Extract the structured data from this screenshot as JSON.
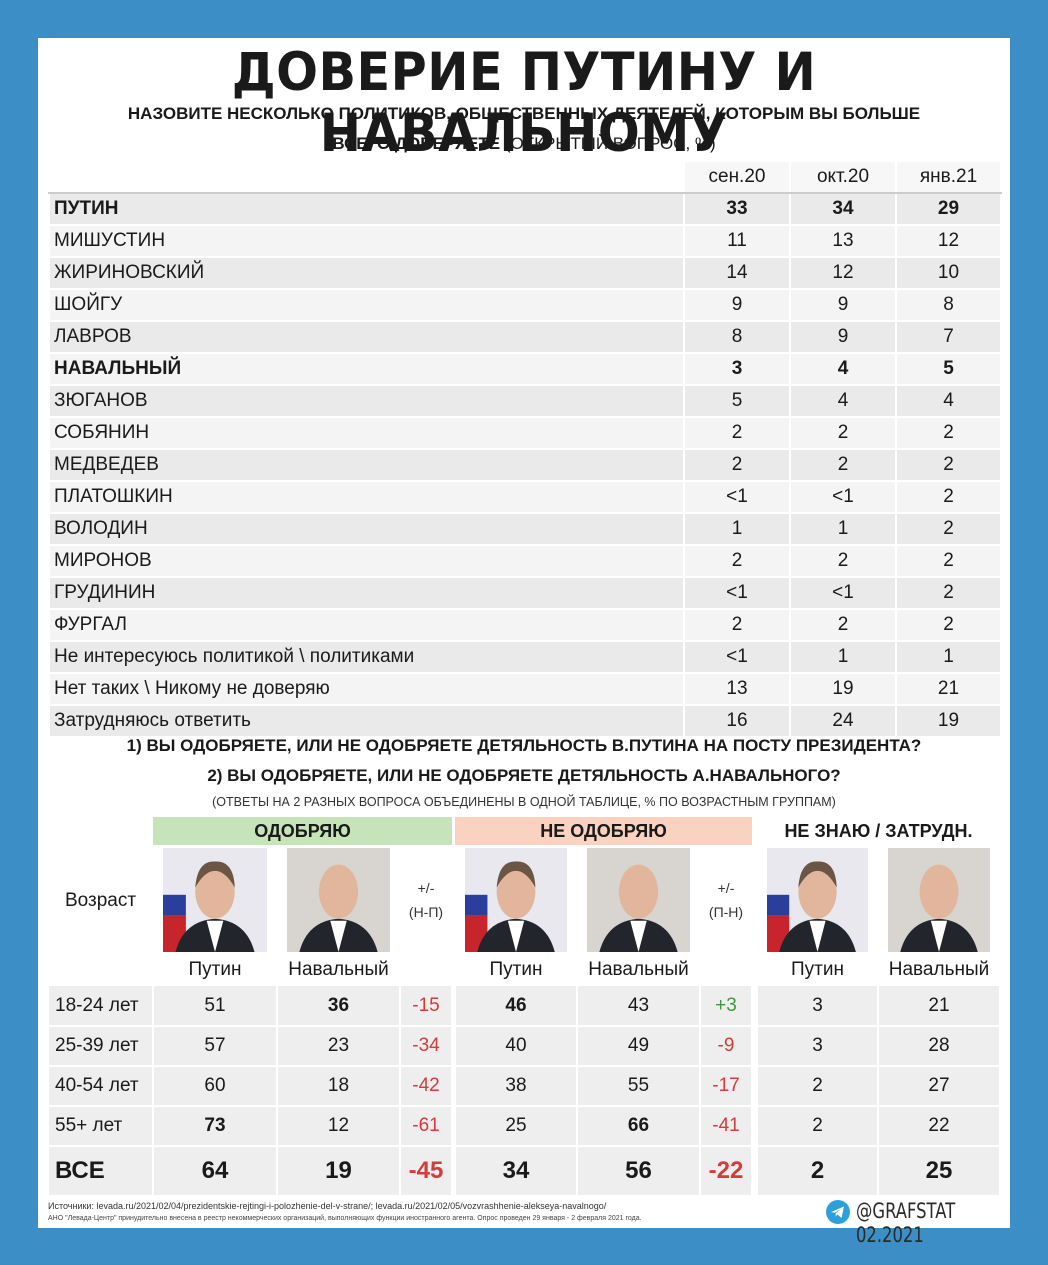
{
  "header": {
    "title": "ДОВЕРИЕ ПУТИНУ И НАВАЛЬНОМУ",
    "question_bold_1": "НАЗОВИТЕ НЕСКОЛЬКО ПОЛИТИКОВ, ОБЩЕСТВЕННЫХ ДЕЯТЕЛЕЙ, КОТОРЫМ ВЫ БОЛЬШЕ",
    "question_bold_2": "ВСЕГО ДОВЕРЯЕТЕ",
    "question_note": "(ОТКРЫТЫЙ ВОПРОС, %)"
  },
  "trust_table": {
    "columns": [
      "сен.20",
      "окт.20",
      "янв.21"
    ],
    "rows": [
      [
        "ПУТИН",
        "33",
        "34",
        "29"
      ],
      [
        "МИШУСТИН",
        "11",
        "13",
        "12"
      ],
      [
        "ЖИРИНОВСКИЙ",
        "14",
        "12",
        "10"
      ],
      [
        "ШОЙГУ",
        "9",
        "9",
        "8"
      ],
      [
        "ЛАВРОВ",
        "8",
        "9",
        "7"
      ],
      [
        "НАВАЛЬНЫЙ",
        "3",
        "4",
        "5"
      ],
      [
        "ЗЮГАНОВ",
        "5",
        "4",
        "4"
      ],
      [
        "СОБЯНИН",
        "2",
        "2",
        "2"
      ],
      [
        "МЕДВЕДЕВ",
        "2",
        "2",
        "2"
      ],
      [
        "ПЛАТОШКИН",
        "<1",
        "<1",
        "2"
      ],
      [
        "ВОЛОДИН",
        "1",
        "1",
        "2"
      ],
      [
        "МИРОНОВ",
        "2",
        "2",
        "2"
      ],
      [
        "ГРУДИНИН",
        "<1",
        "<1",
        "2"
      ],
      [
        "ФУРГАЛ",
        "2",
        "2",
        "2"
      ],
      [
        "Не интересуюсь политикой \\ политиками",
        "<1",
        "1",
        "1"
      ],
      [
        "Нет таких \\ Никому не доверяю",
        "13",
        "19",
        "21"
      ],
      [
        "Затрудняюсь ответить",
        "16",
        "24",
        "19"
      ]
    ]
  },
  "approval": {
    "question_1": "1) ВЫ ОДОБРЯЕТЕ, ИЛИ НЕ ОДОБРЯЕТЕ ДЕТЯЛЬНОСТЬ В.ПУТИНА НА ПОСТУ ПРЕЗИДЕНТА?",
    "question_2": "2) ВЫ ОДОБРЯЕТЕ, ИЛИ НЕ ОДОБРЯЕТЕ ДЕТЯЛЬНОСТЬ А.НАВАЛЬНОГО?",
    "note": "(ОТВЕТЫ НА 2 РАЗНЫХ ВОПРОСА ОБЪЕДИНЕНЫ В ОДНОЙ ТАБЛИЦЕ, % ПО ВОЗРАСТНЫМ ГРУППАМ)",
    "age_header": "Возраст",
    "groups": [
      {
        "title": "ОДОБРЯЮ",
        "columns": [
          "Путин",
          "Навальный"
        ],
        "diff": [
          "+/-",
          "(Н-П)"
        ]
      },
      {
        "title": "НЕ ОДОБРЯЮ",
        "columns": [
          "Путин",
          "Навальный"
        ],
        "diff": [
          "+/-",
          "(П-Н)"
        ]
      },
      {
        "title": "НЕ ЗНАЮ / ЗАТРУДН.",
        "columns": [
          "Путин",
          "Навальный"
        ]
      }
    ],
    "rows": [
      {
        "age": "18-24 лет",
        "cells": [
          "51",
          "36",
          "-15",
          "46",
          "43",
          "+3",
          "3",
          "21"
        ]
      },
      {
        "age": "25-39 лет",
        "cells": [
          "57",
          "23",
          "-34",
          "40",
          "49",
          "-9",
          "3",
          "28"
        ]
      },
      {
        "age": "40-54 лет",
        "cells": [
          "60",
          "18",
          "-42",
          "38",
          "55",
          "-17",
          "2",
          "27"
        ]
      },
      {
        "age": "55+ лет",
        "cells": [
          "73",
          "12",
          "-61",
          "25",
          "66",
          "-41",
          "2",
          "22"
        ]
      },
      {
        "age": "ВСЕ",
        "cells": [
          "64",
          "19",
          "-45",
          "34",
          "56",
          "-22",
          "2",
          "25"
        ]
      }
    ]
  },
  "footer": {
    "sources": "Источники: levada.ru/2021/02/04/prezidentskie-rejtingi-i-polozhenie-del-v-strane/; levada.ru/2021/02/05/vozvrashhenie-alekseya-navalnogo/",
    "disclaimer": "АНО \"Левада-Центр\" принудительно внесена в реестр некоммерческих организаций, выполняющих функции иностранного агента. Опрос проведен 29 января - 2 февраля 2021 года.",
    "brand": "@GRAFSTAT 02.2021"
  }
}
